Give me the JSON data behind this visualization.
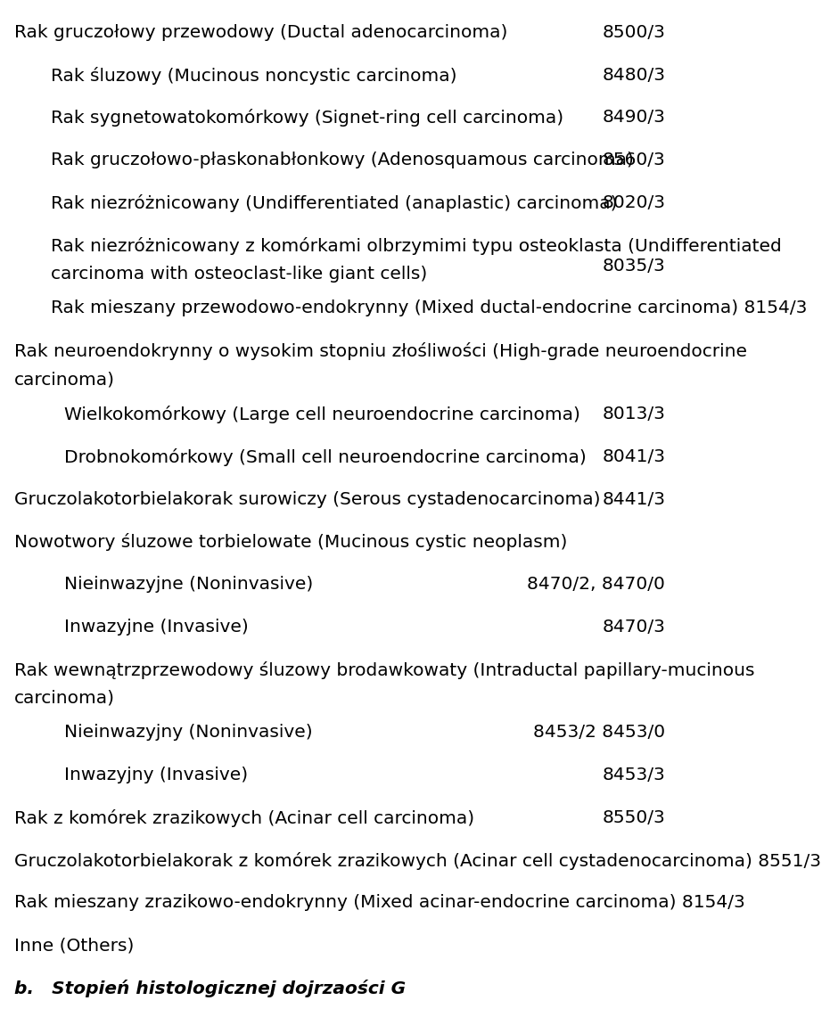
{
  "bg_color": "#ffffff",
  "text_color": "#000000",
  "font_size": 14.5,
  "page_width": 9.6,
  "page_height": 14.57,
  "lines": [
    {
      "indent": 0,
      "text": "Rak gruczołowy przewodowy (Ductal adenocarcinoma)",
      "code": "8500/3",
      "bold": false,
      "n_rows": 1
    },
    {
      "indent": 1,
      "text": "Rak śluzowy (Mucinous noncystic carcinoma)",
      "code": "8480/3",
      "bold": false,
      "n_rows": 1
    },
    {
      "indent": 1,
      "text": "Rak sygnetowatokomórkowy (Signet-ring cell carcinoma)",
      "code": "8490/3",
      "bold": false,
      "n_rows": 1
    },
    {
      "indent": 1,
      "text": "Rak gruczołowo-płaskonabłonkowy (Adenosquamous carcinoma)",
      "code": "8560/3",
      "bold": false,
      "n_rows": 1
    },
    {
      "indent": 1,
      "text": "Rak niezróżnicowany (Undifferentiated (anaplastic) carcinoma)",
      "code": "8020/3",
      "bold": false,
      "n_rows": 1
    },
    {
      "indent": 1,
      "text": "Rak niezróżnicowany z komórkami olbrzymimi typu osteoklasta (Undifferentiated\ncarcinoma with osteoclast-like giant cells)",
      "code": "8035/3",
      "bold": false,
      "n_rows": 2
    },
    {
      "indent": 1,
      "text": "Rak mieszany przewodowo-endokrynny (Mixed ductal-endocrine carcinoma) 8154/3",
      "code": "",
      "bold": false,
      "n_rows": 1
    },
    {
      "indent": 0,
      "text": "Rak neuroendokrynny o wysokim stopniu złośliwości (High-grade neuroendocrine\ncarcinoma)",
      "code": "",
      "bold": false,
      "n_rows": 2
    },
    {
      "indent": 2,
      "text": "Wielkokomórkowy (Large cell neuroendocrine carcinoma)",
      "code": "8013/3",
      "bold": false,
      "n_rows": 1
    },
    {
      "indent": 2,
      "text": "Drobnokomórkowy (Small cell neuroendocrine carcinoma)",
      "code": "8041/3",
      "bold": false,
      "n_rows": 1
    },
    {
      "indent": 0,
      "text": "Gruczolakotorbielakorak surowiczy (Serous cystadenocarcinoma)",
      "code": "8441/3",
      "bold": false,
      "n_rows": 1
    },
    {
      "indent": 0,
      "text": "Nowotwory śluzowe torbielowate (Mucinous cystic neoplasm)",
      "code": "",
      "bold": false,
      "n_rows": 1
    },
    {
      "indent": 2,
      "text": "Nieinwazyjne (Noninvasive)",
      "code": "8470/2, 8470/0",
      "bold": false,
      "n_rows": 1
    },
    {
      "indent": 2,
      "text": "Inwazyjne (Invasive)",
      "code": "8470/3",
      "bold": false,
      "n_rows": 1
    },
    {
      "indent": 0,
      "text": "Rak wewnątrzprzewodowy śluzowy brodawkowaty (Intraductal papillary-mucinous\ncarcinoma)",
      "code": "",
      "bold": false,
      "n_rows": 2
    },
    {
      "indent": 2,
      "text": "Nieinwazyjny (Noninvasive)",
      "code": "8453/2 8453/0",
      "bold": false,
      "n_rows": 1
    },
    {
      "indent": 2,
      "text": "Inwazyjny (Invasive)",
      "code": "8453/3",
      "bold": false,
      "n_rows": 1
    },
    {
      "indent": 0,
      "text": "Rak z komórek zrazikowych (Acinar cell carcinoma)",
      "code": "8550/3",
      "bold": false,
      "n_rows": 1
    },
    {
      "indent": 0,
      "text": "Gruczolakotorbielakorak z komórek zrazikowych (Acinar cell cystadenocarcinoma) 8551/3",
      "code": "",
      "bold": false,
      "n_rows": 1
    },
    {
      "indent": 0,
      "text": "Rak mieszany zrazikowo-endokrynny (Mixed acinar-endocrine carcinoma) 8154/3",
      "code": "",
      "bold": false,
      "n_rows": 1
    },
    {
      "indent": 0,
      "text": "Inne (Others)",
      "code": "",
      "bold": false,
      "n_rows": 1
    },
    {
      "indent": 0,
      "text": "b. Stopień histologicznej dojrzaości G",
      "code": "",
      "bold": true,
      "n_rows": 1
    }
  ]
}
